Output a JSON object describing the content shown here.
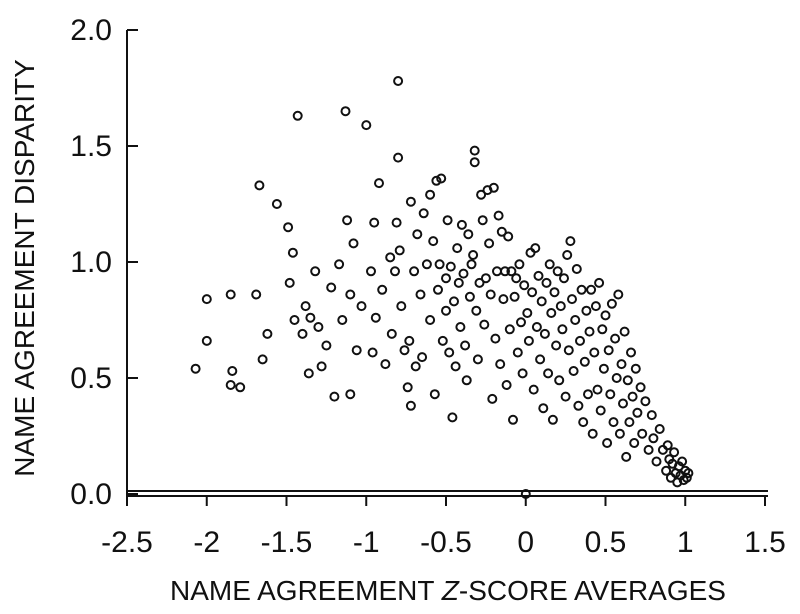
{
  "chart_data": {
    "type": "scatter",
    "xlabel_parts": [
      "NAME AGREEMENT ",
      "Z",
      "-SCORE AVERAGES"
    ],
    "ylabel": "NAME AGREEMENT DISPARITY",
    "xlim": [
      -2.5,
      1.5
    ],
    "ylim": [
      0.0,
      2.0
    ],
    "x_ticks": [
      -2.5,
      -2,
      -1.5,
      -1,
      -0.5,
      0,
      0.5,
      1,
      1.5
    ],
    "x_tick_labels": [
      "-2.5",
      "-2",
      "-1.5",
      "-1",
      "-0.5",
      "0",
      "0.5",
      "1",
      "1.5"
    ],
    "y_ticks": [
      0.0,
      0.5,
      1.0,
      1.5,
      2.0
    ],
    "y_tick_labels": [
      "0.0",
      "0.5",
      "1.0",
      "1.5",
      "2.0"
    ],
    "grid": false,
    "points": [
      [
        -2.07,
        0.54
      ],
      [
        -2.0,
        0.84
      ],
      [
        -2.0,
        0.66
      ],
      [
        -1.85,
        0.86
      ],
      [
        -1.84,
        0.53
      ],
      [
        -1.85,
        0.47
      ],
      [
        -1.79,
        0.46
      ],
      [
        -1.69,
        0.86
      ],
      [
        -1.67,
        1.33
      ],
      [
        -1.65,
        0.58
      ],
      [
        -1.62,
        0.69
      ],
      [
        -1.56,
        1.25
      ],
      [
        -1.48,
        0.91
      ],
      [
        -1.49,
        1.15
      ],
      [
        -1.46,
        1.04
      ],
      [
        -1.45,
        0.75
      ],
      [
        -1.43,
        1.63
      ],
      [
        -1.4,
        0.69
      ],
      [
        -1.38,
        0.81
      ],
      [
        -1.35,
        0.76
      ],
      [
        -1.36,
        0.52
      ],
      [
        -1.32,
        0.96
      ],
      [
        -1.3,
        0.72
      ],
      [
        -1.28,
        0.55
      ],
      [
        -1.25,
        0.64
      ],
      [
        -1.22,
        0.89
      ],
      [
        -1.2,
        0.42
      ],
      [
        -1.17,
        0.99
      ],
      [
        -1.15,
        0.75
      ],
      [
        -1.13,
        1.65
      ],
      [
        -1.12,
        1.18
      ],
      [
        -1.1,
        0.86
      ],
      [
        -1.1,
        0.43
      ],
      [
        -1.08,
        1.08
      ],
      [
        -1.06,
        0.62
      ],
      [
        -1.03,
        0.81
      ],
      [
        -1.0,
        1.59
      ],
      [
        -0.97,
        0.96
      ],
      [
        -0.96,
        0.61
      ],
      [
        -0.95,
        1.17
      ],
      [
        -0.94,
        0.76
      ],
      [
        -0.92,
        1.34
      ],
      [
        -0.9,
        0.88
      ],
      [
        -0.88,
        0.56
      ],
      [
        -0.85,
        1.02
      ],
      [
        -0.84,
        0.69
      ],
      [
        -0.82,
        0.96
      ],
      [
        -0.81,
        1.17
      ],
      [
        -0.8,
        1.78
      ],
      [
        -0.8,
        1.45
      ],
      [
        -0.79,
        1.05
      ],
      [
        -0.78,
        0.81
      ],
      [
        -0.76,
        0.62
      ],
      [
        -0.74,
        0.46
      ],
      [
        -0.73,
        0.66
      ],
      [
        -0.72,
        1.26
      ],
      [
        -0.72,
        0.38
      ],
      [
        -0.7,
        0.96
      ],
      [
        -0.69,
        0.55
      ],
      [
        -0.68,
        1.12
      ],
      [
        -0.66,
        0.86
      ],
      [
        -0.65,
        0.59
      ],
      [
        -0.64,
        1.21
      ],
      [
        -0.62,
        0.99
      ],
      [
        -0.6,
        0.75
      ],
      [
        -0.6,
        1.29
      ],
      [
        -0.58,
        1.09
      ],
      [
        -0.57,
        0.43
      ],
      [
        -0.56,
        1.35
      ],
      [
        -0.55,
        0.88
      ],
      [
        -0.54,
        0.99
      ],
      [
        -0.53,
        1.36
      ],
      [
        -0.52,
        0.66
      ],
      [
        -0.5,
        0.93
      ],
      [
        -0.5,
        0.79
      ],
      [
        -0.49,
        1.18
      ],
      [
        -0.48,
        0.61
      ],
      [
        -0.47,
        0.98
      ],
      [
        -0.46,
        0.33
      ],
      [
        -0.45,
        0.83
      ],
      [
        -0.44,
        0.55
      ],
      [
        -0.43,
        1.06
      ],
      [
        -0.42,
        0.91
      ],
      [
        -0.41,
        0.72
      ],
      [
        -0.4,
        1.16
      ],
      [
        -0.39,
        0.95
      ],
      [
        -0.38,
        0.64
      ],
      [
        -0.37,
        0.49
      ],
      [
        -0.36,
        1.12
      ],
      [
        -0.35,
        0.85
      ],
      [
        -0.34,
        0.99
      ],
      [
        -0.33,
        1.03
      ],
      [
        -0.32,
        1.48
      ],
      [
        -0.32,
        1.43
      ],
      [
        -0.31,
        0.79
      ],
      [
        -0.3,
        0.58
      ],
      [
        -0.29,
        0.91
      ],
      [
        -0.28,
        1.29
      ],
      [
        -0.27,
        1.18
      ],
      [
        -0.26,
        0.73
      ],
      [
        -0.25,
        0.93
      ],
      [
        -0.24,
        1.31
      ],
      [
        -0.23,
        1.08
      ],
      [
        -0.22,
        0.86
      ],
      [
        -0.21,
        0.41
      ],
      [
        -0.2,
        1.32
      ],
      [
        -0.19,
        0.67
      ],
      [
        -0.18,
        0.96
      ],
      [
        -0.17,
        1.2
      ],
      [
        -0.16,
        0.56
      ],
      [
        -0.15,
        1.13
      ],
      [
        -0.14,
        0.84
      ],
      [
        -0.13,
        0.96
      ],
      [
        -0.12,
        0.47
      ],
      [
        -0.11,
        1.11
      ],
      [
        -0.1,
        0.71
      ],
      [
        -0.09,
        0.96
      ],
      [
        -0.08,
        0.32
      ],
      [
        -0.07,
        0.85
      ],
      [
        -0.06,
        0.93
      ],
      [
        -0.05,
        0.61
      ],
      [
        -0.04,
        0.99
      ],
      [
        -0.03,
        0.74
      ],
      [
        -0.02,
        0.52
      ],
      [
        -0.01,
        0.9
      ],
      [
        0.0,
        0.0
      ],
      [
        0.01,
        0.78
      ],
      [
        0.02,
        0.66
      ],
      [
        0.03,
        1.04
      ],
      [
        0.04,
        0.87
      ],
      [
        0.05,
        0.45
      ],
      [
        0.06,
        1.06
      ],
      [
        0.07,
        0.72
      ],
      [
        0.08,
        0.94
      ],
      [
        0.09,
        0.58
      ],
      [
        0.1,
        0.83
      ],
      [
        0.11,
        0.37
      ],
      [
        0.12,
        0.69
      ],
      [
        0.13,
        0.91
      ],
      [
        0.14,
        0.52
      ],
      [
        0.15,
        0.99
      ],
      [
        0.16,
        0.78
      ],
      [
        0.17,
        0.32
      ],
      [
        0.18,
        0.87
      ],
      [
        0.19,
        0.64
      ],
      [
        0.2,
        0.96
      ],
      [
        0.21,
        0.49
      ],
      [
        0.22,
        0.81
      ],
      [
        0.23,
        0.71
      ],
      [
        0.24,
        0.93
      ],
      [
        0.25,
        0.42
      ],
      [
        0.26,
        1.03
      ],
      [
        0.27,
        0.62
      ],
      [
        0.28,
        1.09
      ],
      [
        0.29,
        0.84
      ],
      [
        0.3,
        0.53
      ],
      [
        0.31,
        0.75
      ],
      [
        0.32,
        0.97
      ],
      [
        0.33,
        0.38
      ],
      [
        0.34,
        0.66
      ],
      [
        0.35,
        0.88
      ],
      [
        0.36,
        0.31
      ],
      [
        0.37,
        0.57
      ],
      [
        0.38,
        0.79
      ],
      [
        0.39,
        0.43
      ],
      [
        0.4,
        0.7
      ],
      [
        0.41,
        0.88
      ],
      [
        0.42,
        0.26
      ],
      [
        0.43,
        0.61
      ],
      [
        0.44,
        0.81
      ],
      [
        0.45,
        0.45
      ],
      [
        0.46,
        0.91
      ],
      [
        0.47,
        0.36
      ],
      [
        0.48,
        0.71
      ],
      [
        0.49,
        0.54
      ],
      [
        0.5,
        0.77
      ],
      [
        0.51,
        0.22
      ],
      [
        0.52,
        0.62
      ],
      [
        0.53,
        0.43
      ],
      [
        0.54,
        0.82
      ],
      [
        0.55,
        0.31
      ],
      [
        0.56,
        0.67
      ],
      [
        0.57,
        0.5
      ],
      [
        0.58,
        0.86
      ],
      [
        0.59,
        0.26
      ],
      [
        0.6,
        0.56
      ],
      [
        0.61,
        0.39
      ],
      [
        0.62,
        0.7
      ],
      [
        0.63,
        0.16
      ],
      [
        0.64,
        0.49
      ],
      [
        0.65,
        0.31
      ],
      [
        0.66,
        0.61
      ],
      [
        0.67,
        0.42
      ],
      [
        0.68,
        0.22
      ],
      [
        0.69,
        0.54
      ],
      [
        0.7,
        0.35
      ],
      [
        0.72,
        0.46
      ],
      [
        0.73,
        0.26
      ],
      [
        0.75,
        0.4
      ],
      [
        0.77,
        0.19
      ],
      [
        0.79,
        0.34
      ],
      [
        0.8,
        0.24
      ],
      [
        0.82,
        0.14
      ],
      [
        0.84,
        0.28
      ],
      [
        0.86,
        0.19
      ],
      [
        0.88,
        0.1
      ],
      [
        0.89,
        0.21
      ],
      [
        0.9,
        0.15
      ],
      [
        0.91,
        0.07
      ],
      [
        0.92,
        0.13
      ],
      [
        0.93,
        0.18
      ],
      [
        0.94,
        0.09
      ],
      [
        0.95,
        0.05
      ],
      [
        0.96,
        0.12
      ],
      [
        0.97,
        0.08
      ],
      [
        0.98,
        0.14
      ],
      [
        0.99,
        0.06
      ],
      [
        1.0,
        0.1
      ],
      [
        1.01,
        0.07
      ],
      [
        1.02,
        0.09
      ]
    ]
  }
}
